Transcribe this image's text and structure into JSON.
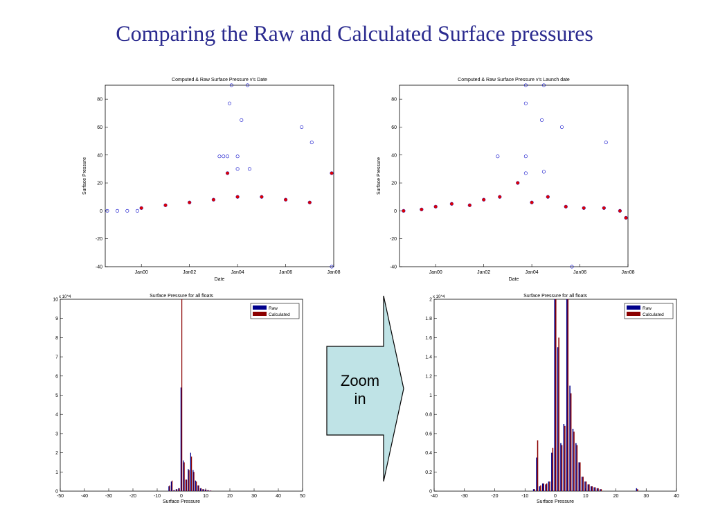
{
  "slide": {
    "title": "Comparing the Raw and Calculated Surface pressures",
    "arrow_text": [
      "Zoom",
      "in"
    ]
  },
  "colors": {
    "title": "#2b2b8f",
    "raw": "#0000c8",
    "calculated": "#e00000",
    "raw_bar": "#00008b",
    "calc_bar": "#8b0000",
    "arrow_fill": "#bfe3e6"
  },
  "chart_data": [
    {
      "type": "scatter",
      "title": "Computed & Raw Surface Pressure v's Date",
      "xlabel": "Date",
      "ylabel": "Surface Pressure",
      "x_ticks": [
        "Jan00",
        "Jan02",
        "Jan04",
        "Jan06",
        "Jan08"
      ],
      "x_tick_dates": [
        "2000-01-01",
        "2002-01-01",
        "2004-01-01",
        "2006-01-01",
        "2008-01-01"
      ],
      "xlim": [
        "1998-07-01",
        "2008-01-01"
      ],
      "ylim": [
        -40,
        90
      ],
      "y_ticks": [
        -40,
        -20,
        0,
        20,
        40,
        60,
        80
      ],
      "grid": false,
      "series": [
        {
          "name": "Raw",
          "points": [
            [
              "1998-08-01",
              0
            ],
            [
              "1999-01-01",
              0
            ],
            [
              "1999-06-01",
              0
            ],
            [
              "1999-11-01",
              0
            ],
            [
              "2003-04-01",
              39
            ],
            [
              "2003-06-01",
              39
            ],
            [
              "2003-08-01",
              39
            ],
            [
              "2003-09-01",
              77
            ],
            [
              "2003-10-01",
              90
            ],
            [
              "2004-01-01",
              39
            ],
            [
              "2004-03-01",
              65
            ],
            [
              "2004-06-01",
              90
            ],
            [
              "2006-09-01",
              60
            ],
            [
              "2007-02-01",
              49
            ],
            [
              "2004-01-01",
              30
            ],
            [
              "2004-07-01",
              30
            ],
            [
              "2007-12-01",
              -40
            ]
          ]
        },
        {
          "name": "Calculated",
          "points": [
            [
              "2000-01-01",
              2
            ],
            [
              "2001-01-01",
              4
            ],
            [
              "2002-01-01",
              6
            ],
            [
              "2003-01-01",
              8
            ],
            [
              "2004-01-01",
              10
            ],
            [
              "2005-01-01",
              10
            ],
            [
              "2006-01-01",
              8
            ],
            [
              "2007-01-01",
              6
            ],
            [
              "2003-08-01",
              27
            ],
            [
              "2007-12-01",
              27
            ]
          ]
        }
      ]
    },
    {
      "type": "scatter",
      "title": "Computed & Raw Surface Pressure v's Launch date",
      "xlabel": "Date",
      "ylabel": "Surface Pressure",
      "x_ticks": [
        "Jan00",
        "Jan02",
        "Jan04",
        "Jan06",
        "Jan08"
      ],
      "x_tick_dates": [
        "2000-01-01",
        "2002-01-01",
        "2004-01-01",
        "2006-01-01",
        "2008-01-01"
      ],
      "xlim": [
        "1998-07-01",
        "2008-01-01"
      ],
      "ylim": [
        -40,
        90
      ],
      "y_ticks": [
        -40,
        -20,
        0,
        20,
        40,
        60,
        80
      ],
      "grid": false,
      "series": [
        {
          "name": "Raw",
          "points": [
            [
              "2002-08-01",
              39
            ],
            [
              "2003-10-01",
              90
            ],
            [
              "2003-10-01",
              77
            ],
            [
              "2003-10-01",
              39
            ],
            [
              "2004-07-01",
              90
            ],
            [
              "2004-06-01",
              65
            ],
            [
              "2005-04-01",
              60
            ],
            [
              "2007-02-01",
              49
            ],
            [
              "2003-10-01",
              27
            ],
            [
              "2004-07-01",
              28
            ],
            [
              "2005-09-01",
              -40
            ]
          ]
        },
        {
          "name": "Calculated",
          "points": [
            [
              "1998-09-01",
              0
            ],
            [
              "1999-06-01",
              1
            ],
            [
              "2000-01-01",
              3
            ],
            [
              "2000-09-01",
              5
            ],
            [
              "2001-06-01",
              4
            ],
            [
              "2002-01-01",
              8
            ],
            [
              "2002-09-01",
              10
            ],
            [
              "2003-06-01",
              20
            ],
            [
              "2004-01-01",
              6
            ],
            [
              "2004-09-01",
              10
            ],
            [
              "2005-06-01",
              3
            ],
            [
              "2006-03-01",
              2
            ],
            [
              "2007-01-01",
              2
            ],
            [
              "2007-09-01",
              0
            ],
            [
              "2007-12-01",
              -5
            ]
          ]
        }
      ]
    },
    {
      "type": "bar",
      "title": "Surface Pressure for all floats",
      "xlabel": "Surface Pressure",
      "ylabel": "",
      "y_multiplier": "x 10^4",
      "xlim": [
        -50,
        50
      ],
      "ylim": [
        0,
        10
      ],
      "x_ticks": [
        -50,
        -40,
        -30,
        -20,
        -10,
        0,
        10,
        20,
        30,
        40,
        50
      ],
      "y_ticks": [
        0,
        1,
        2,
        3,
        4,
        5,
        6,
        7,
        8,
        9,
        10
      ],
      "legend": {
        "placement": "top-right",
        "entries": [
          "Raw",
          "Calculated"
        ]
      },
      "x": [
        -5,
        -4,
        -3,
        -2,
        -1,
        0,
        1,
        2,
        3,
        4,
        5,
        6,
        7,
        8,
        9,
        10,
        11,
        12
      ],
      "series": [
        {
          "name": "Raw",
          "values": [
            0.25,
            0.5,
            0.05,
            0.1,
            0.15,
            5.4,
            1.6,
            0.6,
            1.15,
            2.0,
            1.1,
            0.55,
            0.3,
            0.15,
            0.1,
            0.08,
            0.05,
            0.03
          ]
        },
        {
          "name": "Calculated",
          "values": [
            0.3,
            0.55,
            0.05,
            0.1,
            0.15,
            10.0,
            1.5,
            0.6,
            1.1,
            1.8,
            1.0,
            0.5,
            0.3,
            0.15,
            0.1,
            0.08,
            0.05,
            0.03
          ]
        }
      ]
    },
    {
      "type": "bar",
      "title": "Surface Pressure for all floats",
      "xlabel": "Surface Pressure",
      "ylabel": "",
      "y_multiplier": "x 10^4",
      "xlim": [
        -40,
        40
      ],
      "ylim": [
        0,
        2
      ],
      "x_ticks": [
        -40,
        -30,
        -20,
        -10,
        0,
        10,
        20,
        30,
        40
      ],
      "y_ticks": [
        0,
        0.2,
        0.4,
        0.6,
        0.8,
        1,
        1.2,
        1.4,
        1.6,
        1.8,
        2
      ],
      "legend": {
        "placement": "top-right",
        "entries": [
          "Raw",
          "Calculated"
        ]
      },
      "x": [
        -7,
        -6,
        -5,
        -4,
        -3,
        -2,
        -1,
        0,
        1,
        2,
        3,
        4,
        5,
        6,
        7,
        8,
        9,
        10,
        11,
        12,
        13,
        14,
        15,
        27
      ],
      "series": [
        {
          "name": "Raw",
          "values": [
            0.02,
            0.35,
            0.05,
            0.08,
            0.07,
            0.1,
            0.4,
            2.0,
            1.5,
            0.5,
            0.7,
            2.0,
            1.1,
            0.65,
            0.5,
            0.3,
            0.15,
            0.1,
            0.07,
            0.05,
            0.04,
            0.03,
            0.02,
            0.03
          ]
        },
        {
          "name": "Calculated",
          "values": [
            0.02,
            0.53,
            0.06,
            0.08,
            0.08,
            0.1,
            0.45,
            2.0,
            1.6,
            0.48,
            0.68,
            2.0,
            1.02,
            0.62,
            0.48,
            0.3,
            0.15,
            0.1,
            0.07,
            0.05,
            0.04,
            0.03,
            0.02,
            0.02
          ]
        }
      ]
    }
  ]
}
